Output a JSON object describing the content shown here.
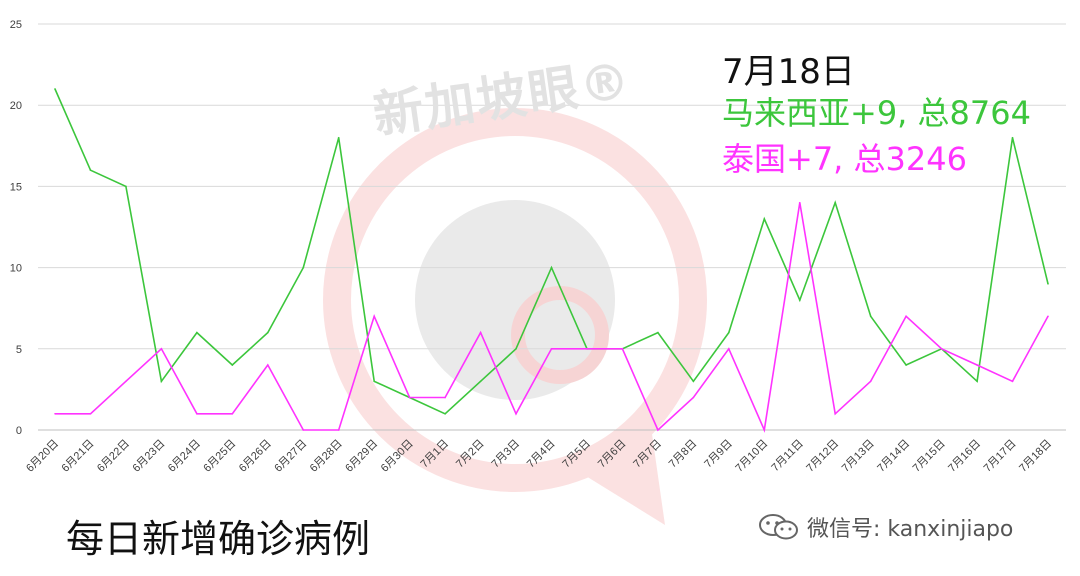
{
  "watermark": {
    "text": "新加坡眼®"
  },
  "annotation": {
    "date": "7月18日",
    "series1_text": "马来西亚+9, 总8764",
    "series2_text": "泰国+7, 总3246"
  },
  "footer": {
    "title": "每日新增确诊病例",
    "wechat_label": "微信号: kanxinjiapo",
    "wechat_icon": "wechat-icon"
  },
  "chart_data": {
    "type": "line",
    "categories": [
      "6月20日",
      "6月21日",
      "6月22日",
      "6月23日",
      "6月24日",
      "6月25日",
      "6月26日",
      "6月27日",
      "6月28日",
      "6月29日",
      "6月30日",
      "7月1日",
      "7月2日",
      "7月3日",
      "7月4日",
      "7月5日",
      "7月6日",
      "7月7日",
      "7月8日",
      "7月9日",
      "7月10日",
      "7月11日",
      "7月12日",
      "7月13日",
      "7月14日",
      "7月15日",
      "7月16日",
      "7月17日",
      "7月18日"
    ],
    "series": [
      {
        "name": "马来西亚",
        "color": "#3cc63c",
        "values": [
          21,
          16,
          15,
          3,
          6,
          4,
          6,
          10,
          18,
          3,
          2,
          1,
          3,
          5,
          10,
          5,
          5,
          6,
          3,
          6,
          13,
          8,
          14,
          7,
          4,
          5,
          3,
          18,
          9
        ]
      },
      {
        "name": "泰国",
        "color": "#ff33ff",
        "values": [
          1,
          1,
          3,
          5,
          1,
          1,
          4,
          0,
          0,
          7,
          2,
          2,
          6,
          1,
          5,
          5,
          5,
          0,
          2,
          5,
          0,
          14,
          1,
          3,
          7,
          5,
          4,
          3,
          7
        ]
      }
    ],
    "yticks": [
      0,
      5,
      10,
      15,
      20,
      25
    ],
    "ylim": [
      0,
      25
    ],
    "grid": true,
    "legend": "none"
  }
}
